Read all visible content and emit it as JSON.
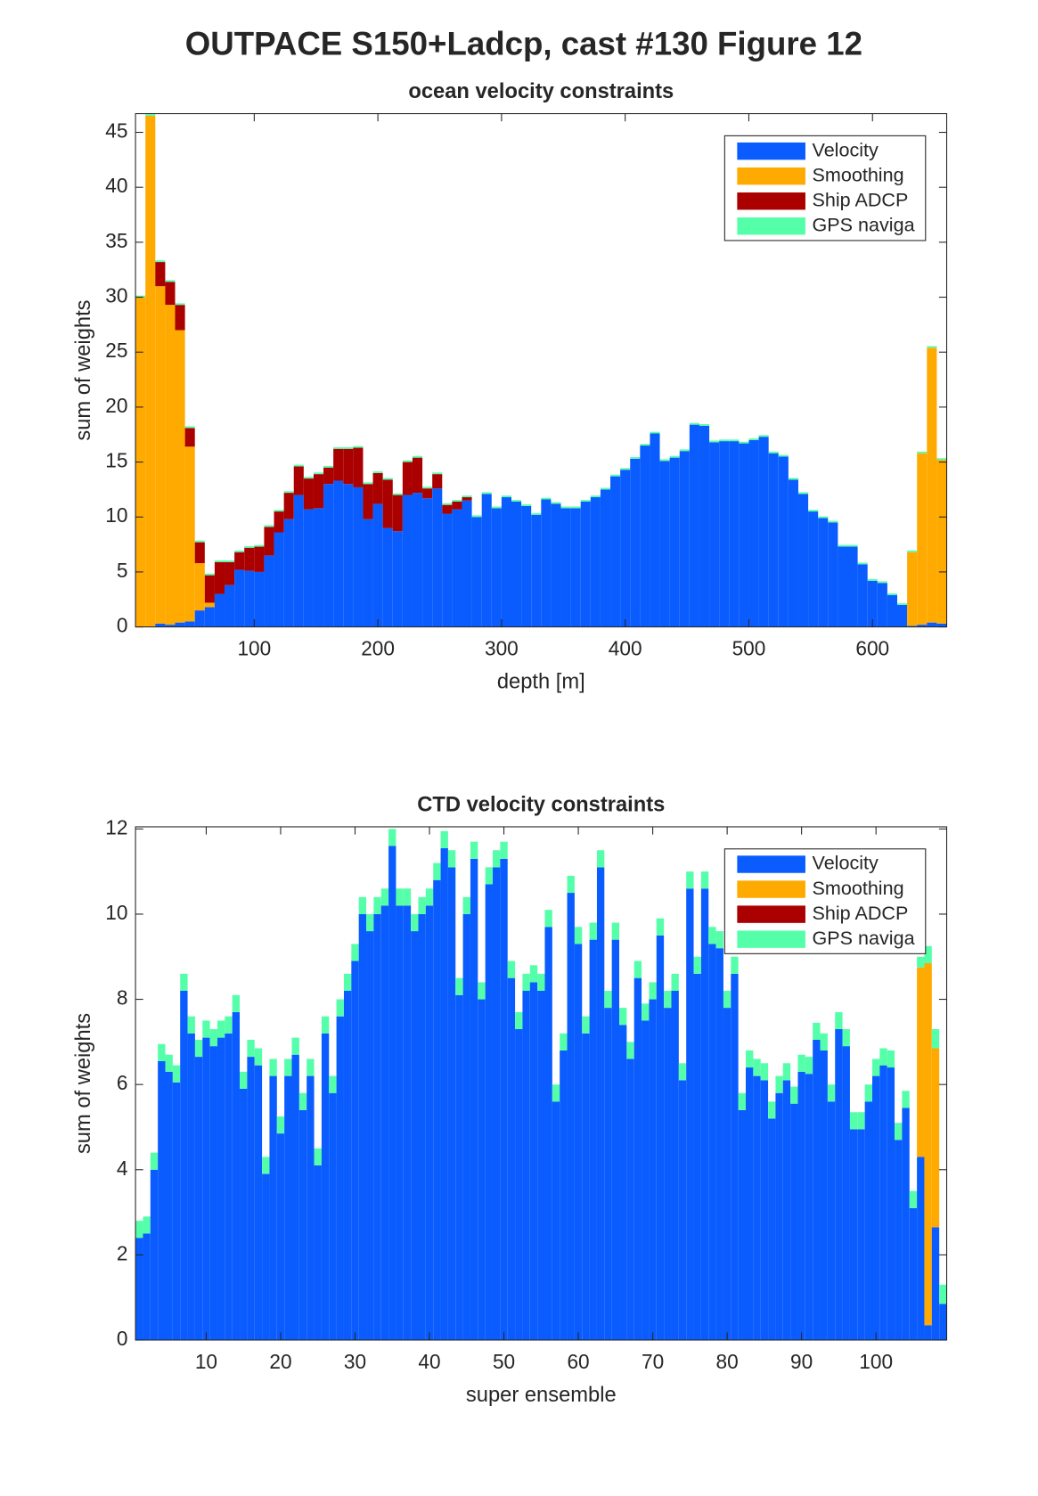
{
  "title": "OUTPACE S150+Ladcp, cast #130  Figure 12",
  "chart_data": [
    {
      "type": "bar",
      "stacked": true,
      "title": "ocean velocity constraints",
      "xlabel": "depth [m]",
      "ylabel": "sum of weights",
      "x": [
        8,
        16,
        24,
        32,
        40,
        48,
        56,
        64,
        72,
        80,
        88,
        96,
        104,
        112,
        120,
        128,
        136,
        144,
        152,
        160,
        168,
        176,
        184,
        192,
        200,
        208,
        216,
        224,
        232,
        240,
        248,
        256,
        264,
        272,
        280,
        288,
        296,
        304,
        312,
        320,
        328,
        336,
        344,
        352,
        360,
        368,
        376,
        384,
        392,
        400,
        408,
        416,
        424,
        432,
        440,
        448,
        456,
        464,
        472,
        480,
        488,
        496,
        504,
        512,
        520,
        528,
        536,
        544,
        552,
        560,
        568,
        576,
        584,
        592,
        600,
        608,
        616,
        624,
        632,
        640,
        648,
        656
      ],
      "series": [
        {
          "name": "Velocity",
          "color": "#0a5cff",
          "values": [
            0,
            0,
            0.3,
            0.2,
            0.4,
            0.5,
            1.5,
            1.8,
            3.0,
            3.8,
            5.2,
            5.1,
            5.0,
            6.5,
            8.6,
            9.8,
            12.0,
            10.7,
            10.8,
            13.0,
            13.3,
            13.0,
            12.7,
            9.8,
            11.2,
            9.0,
            8.7,
            12.0,
            12.2,
            11.7,
            12.6,
            10.3,
            10.7,
            11.5,
            10.0,
            12.1,
            10.8,
            11.8,
            11.4,
            11.0,
            10.2,
            11.6,
            11.2,
            10.8,
            10.8,
            11.4,
            11.8,
            12.5,
            13.7,
            14.3,
            15.3,
            16.5,
            17.6,
            15.1,
            15.4,
            16.0,
            18.4,
            18.3,
            16.8,
            16.9,
            16.9,
            16.7,
            17.0,
            17.3,
            15.8,
            15.5,
            13.4,
            12.1,
            10.5,
            9.9,
            9.5,
            7.3,
            7.3,
            5.7,
            4.2,
            4.0,
            2.9,
            2.0,
            0.1,
            0.2,
            0.4,
            0.3
          ]
        },
        {
          "name": "Smoothing",
          "color": "#ffaa00",
          "values": [
            30,
            46.5,
            30.7,
            29.1,
            26.6,
            15.9,
            4.3,
            0.4,
            0,
            0,
            0,
            0,
            0,
            0,
            0,
            0,
            0,
            0,
            0,
            0,
            0,
            0,
            0,
            0,
            0,
            0,
            0,
            0,
            0,
            0,
            0,
            0,
            0,
            0,
            0,
            0,
            0,
            0,
            0,
            0,
            0,
            0,
            0,
            0,
            0,
            0,
            0,
            0,
            0,
            0,
            0,
            0,
            0,
            0,
            0,
            0,
            0,
            0,
            0,
            0,
            0,
            0,
            0,
            0,
            0,
            0,
            0,
            0,
            0,
            0,
            0,
            0,
            0,
            0,
            0,
            0,
            0,
            0,
            6.7,
            15.6,
            25.0,
            14.9
          ]
        },
        {
          "name": "Ship ADCP",
          "color": "#aa0000",
          "values": [
            0,
            0,
            2.2,
            2.1,
            2.3,
            1.7,
            1.9,
            2.5,
            2.9,
            2.1,
            1.6,
            2.1,
            2.3,
            2.6,
            1.9,
            2.4,
            2.6,
            2.8,
            3.1,
            1.5,
            2.9,
            3.2,
            3.6,
            3.2,
            2.8,
            4.4,
            3.3,
            3.0,
            3.2,
            0.9,
            1.3,
            0.8,
            0.7,
            0.3,
            0,
            0,
            0,
            0,
            0,
            0,
            0,
            0,
            0,
            0,
            0,
            0,
            0,
            0,
            0,
            0,
            0,
            0,
            0,
            0,
            0,
            0,
            0,
            0,
            0,
            0,
            0,
            0,
            0,
            0,
            0,
            0,
            0,
            0,
            0,
            0,
            0,
            0,
            0,
            0,
            0,
            0,
            0,
            0,
            0,
            0,
            0,
            0
          ]
        },
        {
          "name": "GPS naviga",
          "color": "#55ffaa",
          "values": [
            0.15,
            0.15,
            0.15,
            0.15,
            0.15,
            0.15,
            0.15,
            0.15,
            0.15,
            0.15,
            0.15,
            0.15,
            0.15,
            0.15,
            0.15,
            0.15,
            0.15,
            0.15,
            0.15,
            0.15,
            0.15,
            0.15,
            0.15,
            0.15,
            0.15,
            0.15,
            0.15,
            0.15,
            0.15,
            0.15,
            0.15,
            0.15,
            0.15,
            0.15,
            0.15,
            0.15,
            0.15,
            0.15,
            0.15,
            0.15,
            0.15,
            0.15,
            0.15,
            0.15,
            0.15,
            0.15,
            0.15,
            0.15,
            0.15,
            0.15,
            0.15,
            0.15,
            0.15,
            0.15,
            0.15,
            0.15,
            0.15,
            0.15,
            0.15,
            0.15,
            0.15,
            0.15,
            0.15,
            0.15,
            0.15,
            0.15,
            0.15,
            0.15,
            0.15,
            0.15,
            0.15,
            0.15,
            0.15,
            0.15,
            0.15,
            0.15,
            0.15,
            0.15,
            0.15,
            0.15,
            0.15,
            0.15
          ]
        }
      ],
      "xlim": [
        4,
        660
      ],
      "ylim": [
        0,
        46.7
      ],
      "xticks": [
        100,
        200,
        300,
        400,
        500,
        600
      ],
      "yticks": [
        0,
        5,
        10,
        15,
        20,
        25,
        30,
        35,
        40,
        45
      ],
      "legend": "upper right"
    },
    {
      "type": "bar",
      "stacked": true,
      "title": "CTD velocity constraints",
      "xlabel": "super ensemble",
      "ylabel": "sum of weights",
      "x": [
        1,
        2,
        3,
        4,
        5,
        6,
        7,
        8,
        9,
        10,
        11,
        12,
        13,
        14,
        15,
        16,
        17,
        18,
        19,
        20,
        21,
        22,
        23,
        24,
        25,
        26,
        27,
        28,
        29,
        30,
        31,
        32,
        33,
        34,
        35,
        36,
        37,
        38,
        39,
        40,
        41,
        42,
        43,
        44,
        45,
        46,
        47,
        48,
        49,
        50,
        51,
        52,
        53,
        54,
        55,
        56,
        57,
        58,
        59,
        60,
        61,
        62,
        63,
        64,
        65,
        66,
        67,
        68,
        69,
        70,
        71,
        72,
        73,
        74,
        75,
        76,
        77,
        78,
        79,
        80,
        81,
        82,
        83,
        84,
        85,
        86,
        87,
        88,
        89,
        90,
        91,
        92,
        93,
        94,
        95,
        96,
        97,
        98,
        99,
        100,
        101,
        102,
        103,
        104,
        105,
        106,
        107,
        108,
        109
      ],
      "series": [
        {
          "name": "Velocity",
          "color": "#0a5cff",
          "values": [
            2.4,
            2.5,
            4.0,
            6.55,
            6.3,
            6.05,
            8.2,
            7.2,
            6.65,
            7.1,
            6.9,
            7.1,
            7.2,
            7.7,
            5.9,
            6.65,
            6.45,
            3.9,
            6.2,
            4.85,
            6.2,
            6.7,
            5.4,
            6.2,
            4.1,
            7.2,
            5.8,
            7.6,
            8.2,
            8.9,
            10.0,
            9.6,
            10.0,
            10.2,
            11.6,
            10.2,
            10.2,
            9.6,
            10.0,
            10.2,
            10.8,
            11.55,
            11.1,
            8.1,
            10.0,
            11.3,
            8.0,
            10.7,
            11.1,
            11.3,
            8.5,
            7.3,
            8.2,
            8.4,
            8.2,
            9.7,
            5.6,
            6.8,
            10.5,
            9.3,
            7.2,
            9.4,
            11.1,
            7.8,
            9.4,
            7.4,
            6.6,
            8.5,
            7.5,
            8.0,
            9.5,
            7.8,
            8.2,
            6.1,
            10.6,
            8.6,
            10.6,
            9.3,
            9.2,
            7.8,
            8.6,
            5.4,
            6.4,
            6.2,
            6.1,
            5.2,
            5.8,
            6.1,
            5.55,
            6.3,
            6.25,
            7.05,
            6.8,
            5.6,
            7.3,
            6.9,
            4.95,
            4.95,
            5.6,
            6.2,
            6.45,
            6.4,
            4.7,
            5.45,
            3.1,
            4.3,
            0.35,
            2.65,
            0.85
          ]
        },
        {
          "name": "Smoothing",
          "color": "#ffaa00",
          "values": [
            0,
            0,
            0,
            0,
            0,
            0,
            0,
            0,
            0,
            0,
            0,
            0,
            0,
            0,
            0,
            0,
            0,
            0,
            0,
            0,
            0,
            0,
            0,
            0,
            0,
            0,
            0,
            0,
            0,
            0,
            0,
            0,
            0,
            0,
            0,
            0,
            0,
            0,
            0,
            0,
            0,
            0,
            0,
            0,
            0,
            0,
            0,
            0,
            0,
            0,
            0,
            0,
            0,
            0,
            0,
            0,
            0,
            0,
            0,
            0,
            0,
            0,
            0,
            0,
            0,
            0,
            0,
            0,
            0,
            0,
            0,
            0,
            0,
            0,
            0,
            0,
            0,
            0,
            0,
            0,
            0,
            0,
            0,
            0,
            0,
            0,
            0,
            0,
            0,
            0,
            0,
            0,
            0,
            0,
            0,
            0,
            0,
            0,
            0,
            0,
            0,
            0,
            0,
            0,
            0,
            4.45,
            8.5,
            4.2,
            0
          ]
        },
        {
          "name": "Ship ADCP",
          "color": "#aa0000",
          "values": [
            0,
            0,
            0,
            0,
            0,
            0,
            0,
            0,
            0,
            0,
            0,
            0,
            0,
            0,
            0,
            0,
            0,
            0,
            0,
            0,
            0,
            0,
            0,
            0,
            0,
            0,
            0,
            0,
            0,
            0,
            0,
            0,
            0,
            0,
            0,
            0,
            0,
            0,
            0,
            0,
            0,
            0,
            0,
            0,
            0,
            0,
            0,
            0,
            0,
            0,
            0,
            0,
            0,
            0,
            0,
            0,
            0,
            0,
            0,
            0,
            0,
            0,
            0,
            0,
            0,
            0,
            0,
            0,
            0,
            0,
            0,
            0,
            0,
            0,
            0,
            0,
            0,
            0,
            0,
            0,
            0,
            0,
            0,
            0,
            0,
            0,
            0,
            0,
            0,
            0,
            0,
            0,
            0,
            0,
            0,
            0,
            0,
            0,
            0,
            0,
            0,
            0,
            0,
            0,
            0,
            0,
            0,
            0,
            0
          ]
        },
        {
          "name": "GPS naviga",
          "color": "#55ffaa",
          "values": [
            0.4,
            0.4,
            0.4,
            0.4,
            0.4,
            0.4,
            0.4,
            0.4,
            0.4,
            0.4,
            0.4,
            0.4,
            0.4,
            0.4,
            0.4,
            0.4,
            0.4,
            0.4,
            0.4,
            0.4,
            0.4,
            0.4,
            0.4,
            0.4,
            0.4,
            0.4,
            0.4,
            0.4,
            0.4,
            0.4,
            0.4,
            0.4,
            0.4,
            0.4,
            0.4,
            0.4,
            0.4,
            0.4,
            0.4,
            0.4,
            0.4,
            0.4,
            0.4,
            0.4,
            0.4,
            0.4,
            0.4,
            0.4,
            0.4,
            0.4,
            0.4,
            0.4,
            0.4,
            0.4,
            0.4,
            0.4,
            0.4,
            0.4,
            0.4,
            0.4,
            0.4,
            0.4,
            0.4,
            0.4,
            0.4,
            0.4,
            0.4,
            0.4,
            0.4,
            0.4,
            0.4,
            0.4,
            0.4,
            0.4,
            0.4,
            0.4,
            0.4,
            0.4,
            0.4,
            0.4,
            0.4,
            0.4,
            0.4,
            0.4,
            0.4,
            0.4,
            0.4,
            0.4,
            0.4,
            0.4,
            0.4,
            0.4,
            0.4,
            0.4,
            0.4,
            0.4,
            0.4,
            0.4,
            0.4,
            0.4,
            0.4,
            0.4,
            0.4,
            0.4,
            0.4,
            0.25,
            0.4,
            0.45,
            0.45
          ]
        }
      ],
      "xlim": [
        0.5,
        109.5
      ],
      "ylim": [
        0,
        12.05
      ],
      "xticks": [
        10,
        20,
        30,
        40,
        50,
        60,
        70,
        80,
        90,
        100
      ],
      "yticks": [
        0,
        2,
        4,
        6,
        8,
        10,
        12
      ],
      "legend": "upper right"
    }
  ]
}
